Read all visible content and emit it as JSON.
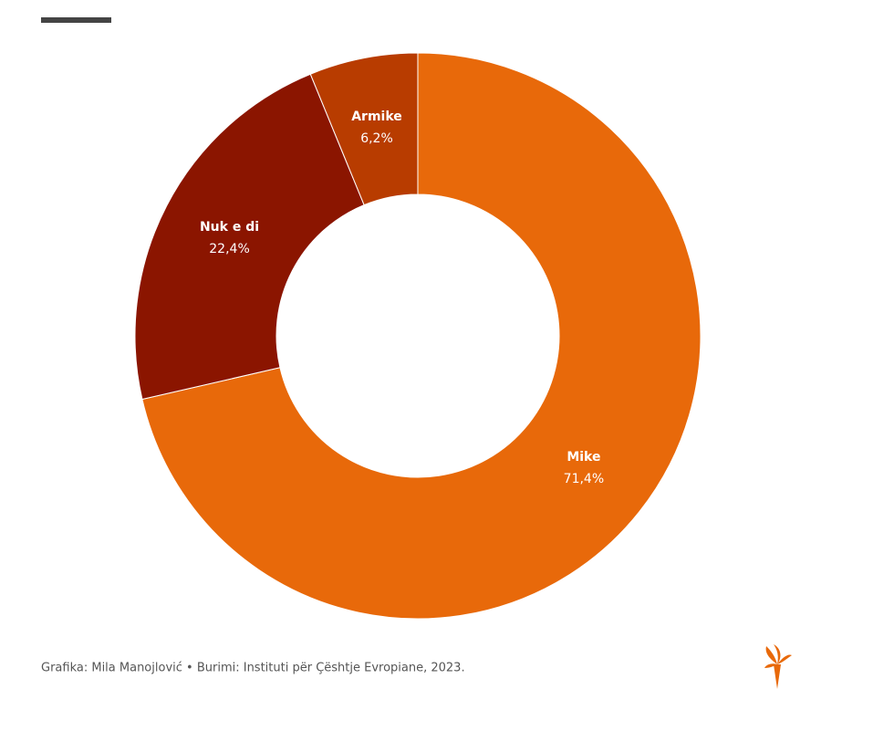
{
  "chart_data": {
    "type": "pie",
    "categories": [
      "Mike",
      "Nuk e di",
      "Armike"
    ],
    "values": [
      71.4,
      22.4,
      6.2
    ],
    "value_labels": [
      "71,4%",
      "22,4%",
      "6,2%"
    ],
    "colors": [
      "#e8690a",
      "#8b1500",
      "#b83c00"
    ],
    "source": "Grafika: Mila Manojlović • Burimi: Instituti për Çështje Evropiane, 2023."
  }
}
